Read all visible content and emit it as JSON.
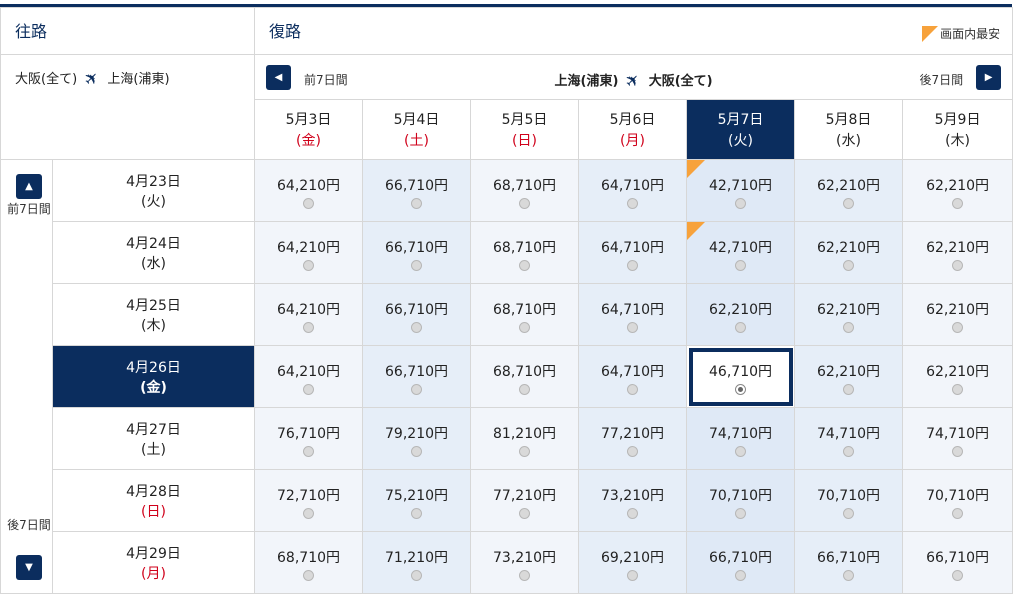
{
  "header": {
    "outbound_title": "往路",
    "return_title": "復路",
    "legend_label": "画面内最安"
  },
  "outbound_route": {
    "from": "大阪(全て)",
    "to": "上海(浦東)"
  },
  "return_route": {
    "from": "上海(浦東)",
    "to": "大阪(全て)"
  },
  "nav": {
    "prev7_label": "前7日間",
    "next7_label": "後7日間",
    "side_prev_label": "前7日間",
    "side_next_label": "後7日間"
  },
  "return_dates": [
    {
      "date": "5月3日",
      "dow": "(金)",
      "dow_color": "red",
      "selected": false
    },
    {
      "date": "5月4日",
      "dow": "(土)",
      "dow_color": "red",
      "selected": false
    },
    {
      "date": "5月5日",
      "dow": "(日)",
      "dow_color": "red",
      "selected": false
    },
    {
      "date": "5月6日",
      "dow": "(月)",
      "dow_color": "red",
      "selected": false
    },
    {
      "date": "5月7日",
      "dow": "(火)",
      "dow_color": "white",
      "selected": true
    },
    {
      "date": "5月8日",
      "dow": "(水)",
      "dow_color": "normal",
      "selected": false
    },
    {
      "date": "5月9日",
      "dow": "(木)",
      "dow_color": "normal",
      "selected": false
    }
  ],
  "rows": [
    {
      "date": "4月23日",
      "dow": "(火)",
      "dow_color": "normal",
      "selected": false,
      "prices": [
        "64,210円",
        "66,710円",
        "68,710円",
        "64,710円",
        "42,710円",
        "62,210円",
        "62,210円"
      ],
      "cheapest_col": 4
    },
    {
      "date": "4月24日",
      "dow": "(水)",
      "dow_color": "normal",
      "selected": false,
      "prices": [
        "64,210円",
        "66,710円",
        "68,710円",
        "64,710円",
        "42,710円",
        "62,210円",
        "62,210円"
      ],
      "cheapest_col": 4
    },
    {
      "date": "4月25日",
      "dow": "(木)",
      "dow_color": "normal",
      "selected": false,
      "prices": [
        "64,210円",
        "66,710円",
        "68,710円",
        "64,710円",
        "62,210円",
        "62,210円",
        "62,210円"
      ],
      "cheapest_col": -1
    },
    {
      "date": "4月26日",
      "dow": "(金)",
      "dow_color": "white",
      "selected": true,
      "prices": [
        "64,210円",
        "66,710円",
        "68,710円",
        "64,710円",
        "46,710円",
        "62,210円",
        "62,210円"
      ],
      "cheapest_col": -1
    },
    {
      "date": "4月27日",
      "dow": "(土)",
      "dow_color": "normal",
      "selected": false,
      "prices": [
        "76,710円",
        "79,210円",
        "81,210円",
        "77,210円",
        "74,710円",
        "74,710円",
        "74,710円"
      ],
      "cheapest_col": -1
    },
    {
      "date": "4月28日",
      "dow": "(日)",
      "dow_color": "red",
      "selected": false,
      "prices": [
        "72,710円",
        "75,210円",
        "77,210円",
        "73,210円",
        "70,710円",
        "70,710円",
        "70,710円"
      ],
      "cheapest_col": -1
    },
    {
      "date": "4月29日",
      "dow": "(月)",
      "dow_color": "red",
      "selected": false,
      "prices": [
        "68,710円",
        "71,210円",
        "73,210円",
        "69,210円",
        "66,710円",
        "66,710円",
        "66,710円"
      ],
      "cheapest_col": -1
    }
  ],
  "selected_col": 4,
  "selected_row": 3,
  "colors": {
    "navy": "#0b2d5e",
    "cheapest_flag": "#f7a23b",
    "holiday_red": "#d0021b"
  }
}
